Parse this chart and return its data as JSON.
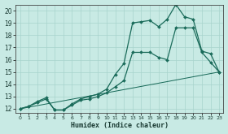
{
  "title": "",
  "xlabel": "Humidex (Indice chaleur)",
  "ylabel": "",
  "bg_color": "#c8eae4",
  "line_color": "#1a6b5a",
  "grid_color": "#a8d4cc",
  "xlim": [
    -0.5,
    23.5
  ],
  "ylim": [
    11.7,
    20.5
  ],
  "xticks": [
    0,
    1,
    2,
    3,
    4,
    5,
    6,
    7,
    8,
    9,
    10,
    11,
    12,
    13,
    14,
    15,
    16,
    17,
    18,
    19,
    20,
    21,
    22,
    23
  ],
  "yticks": [
    12,
    13,
    14,
    15,
    16,
    17,
    18,
    19,
    20
  ],
  "series1": {
    "x": [
      0,
      1,
      2,
      3,
      4,
      5,
      6,
      7,
      8,
      9,
      10,
      11,
      12,
      13,
      14,
      15,
      16,
      17,
      18,
      19,
      20,
      21,
      22,
      23
    ],
    "y": [
      12.0,
      12.2,
      12.5,
      12.8,
      11.9,
      11.9,
      12.3,
      12.7,
      12.8,
      13.0,
      13.3,
      13.8,
      14.3,
      16.6,
      16.6,
      16.6,
      16.2,
      16.0,
      18.6,
      18.6,
      18.6,
      16.6,
      15.8,
      15.0
    ]
  },
  "series2": {
    "x": [
      0,
      1,
      2,
      3,
      4,
      5,
      6,
      7,
      8,
      9,
      10,
      11,
      12,
      13,
      14,
      15,
      16,
      17,
      18,
      19,
      20,
      21,
      22,
      23
    ],
    "y": [
      12.0,
      12.2,
      12.6,
      12.9,
      11.9,
      11.9,
      12.4,
      12.8,
      13.0,
      13.2,
      13.6,
      14.8,
      15.7,
      19.0,
      19.1,
      19.2,
      18.7,
      19.3,
      20.5,
      19.5,
      19.3,
      16.7,
      16.5,
      15.0
    ]
  },
  "series3": {
    "x": [
      0,
      23
    ],
    "y": [
      12.0,
      15.0
    ]
  },
  "markersize": 2.0,
  "linewidth": 0.9
}
